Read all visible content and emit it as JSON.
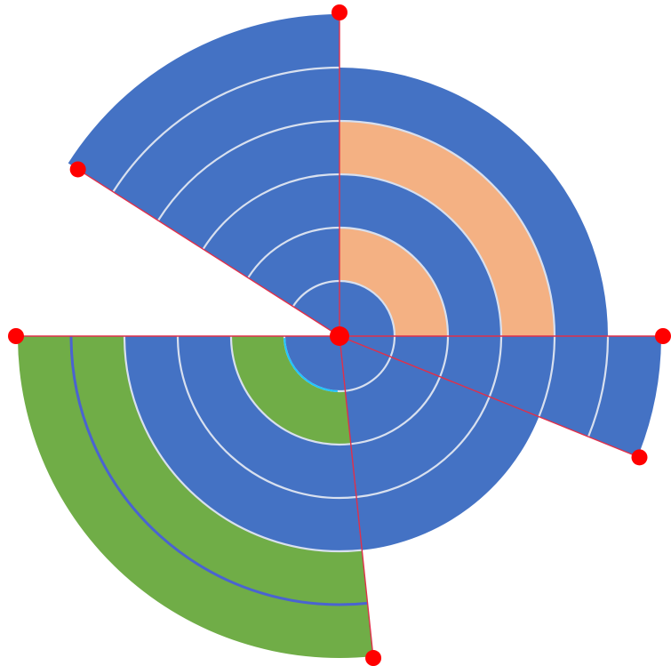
{
  "diagram": {
    "shape": "polar-sector-chart",
    "colors": {
      "base": "#4472c4",
      "orange": "#f4b183",
      "green": "#70ad47",
      "grid": "#d8e0ef",
      "handle": "#ff0000",
      "ray": "#e0304a"
    },
    "sectors": [
      {
        "name": "top-left-sector",
        "fill_levels": 6,
        "highlight_color": "#4472c4"
      },
      {
        "name": "top-right-sector",
        "fill_levels": 5,
        "highlight_color": "#f4b183"
      },
      {
        "name": "right-sector",
        "fill_levels": 6,
        "highlight_color": "#4472c4"
      },
      {
        "name": "bottom-right-sector",
        "fill_levels": 4,
        "highlight_color": "#4472c4"
      },
      {
        "name": "bottom-left-sector",
        "fill_levels": 6,
        "highlight_color": "#70ad47"
      }
    ],
    "handle_count": 7
  }
}
